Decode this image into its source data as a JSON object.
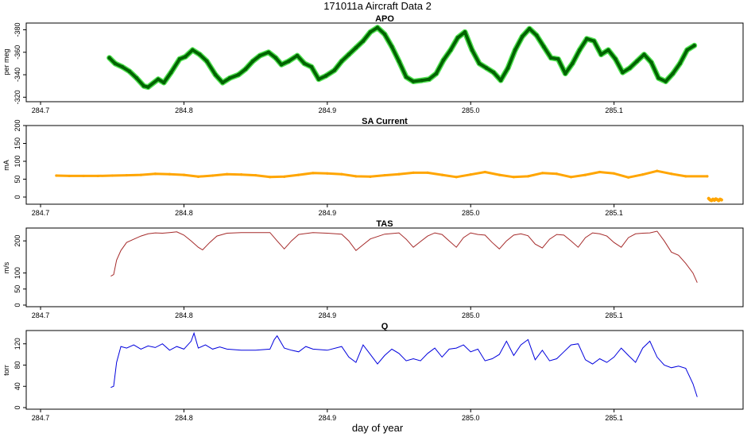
{
  "figure": {
    "title": "171011a   Aircraft Data 2",
    "xlabel": "day of year"
  },
  "chart_data": [
    {
      "type": "scatter",
      "title": "APO",
      "ylabel": "per meg",
      "xlim": [
        284.69,
        285.19
      ],
      "ylim": [
        -386,
        -316
      ],
      "ylim_display": "reversed",
      "xticks": [
        284.7,
        284.8,
        284.9,
        285.0,
        285.1
      ],
      "xtick_labels": [
        "284.7",
        "284.8",
        "284.9",
        "285.0",
        "285.1"
      ],
      "yticks": [
        -320,
        -340,
        -360,
        -380
      ],
      "ytick_labels": [
        "-320",
        "-340",
        "-360",
        "-380"
      ],
      "colors": {
        "primary": "#006400",
        "secondary": "#33dd33"
      },
      "series": [
        {
          "x": [
            284.748,
            284.752,
            284.757,
            284.762,
            284.767,
            284.772,
            284.775,
            284.782,
            284.786,
            284.791,
            284.797,
            284.801,
            284.806,
            284.811,
            284.816,
            284.822,
            284.827,
            284.832,
            284.838,
            284.843,
            284.848,
            284.853,
            284.859,
            284.864,
            284.868,
            284.873,
            284.879,
            284.884,
            284.889,
            284.894,
            284.899,
            284.905,
            284.91,
            284.915,
            284.92,
            284.925,
            284.93,
            284.935,
            284.94,
            284.945,
            284.95,
            284.955,
            284.96,
            284.966,
            284.971,
            284.976,
            284.981,
            284.986,
            284.991,
            284.996,
            285.001,
            285.006,
            285.011,
            285.016,
            285.021,
            285.026,
            285.031,
            285.036,
            285.041,
            285.046,
            285.051,
            285.056,
            285.061,
            285.066,
            285.071,
            285.076,
            285.081,
            285.086,
            285.091,
            285.096,
            285.101,
            285.106,
            285.111,
            285.116,
            285.121,
            285.126,
            285.131,
            285.136,
            285.141,
            285.146,
            285.151,
            285.156
          ],
          "values": [
            -355,
            -350,
            -347,
            -343,
            -337,
            -330,
            -329,
            -336,
            -333,
            -342,
            -354,
            -356,
            -362,
            -358,
            -352,
            -340,
            -333,
            -337,
            -340,
            -345,
            -352,
            -357,
            -360,
            -355,
            -349,
            -352,
            -357,
            -350,
            -347,
            -336,
            -339,
            -344,
            -352,
            -358,
            -364,
            -370,
            -378,
            -382,
            -376,
            -365,
            -352,
            -338,
            -334,
            -335,
            -336,
            -341,
            -353,
            -362,
            -373,
            -378,
            -362,
            -350,
            -346,
            -342,
            -335,
            -346,
            -362,
            -374,
            -381,
            -375,
            -365,
            -355,
            -354,
            -341,
            -350,
            -362,
            -372,
            -370,
            -358,
            -362,
            -354,
            -342,
            -346,
            -352,
            -358,
            -351,
            -337,
            -334,
            -341,
            -350,
            -362,
            -366
          ]
        }
      ]
    },
    {
      "type": "scatter",
      "title": "SA Current",
      "ylabel": "mA",
      "xlim": [
        284.69,
        285.19
      ],
      "ylim": [
        -20,
        200
      ],
      "xticks": [
        284.7,
        284.8,
        284.9,
        285.0,
        285.1
      ],
      "xtick_labels": [
        "284.7",
        "284.8",
        "284.9",
        "285.0",
        "285.1"
      ],
      "yticks": [
        0,
        50,
        100,
        150,
        200
      ],
      "ytick_labels": [
        "0",
        "50",
        "100",
        "150",
        "200"
      ],
      "colors": {
        "primary": "#ffa500"
      },
      "series": [
        {
          "x": [
            284.711,
            284.72,
            284.73,
            284.74,
            284.75,
            284.76,
            284.77,
            284.78,
            284.79,
            284.8,
            284.81,
            284.82,
            284.83,
            284.84,
            284.85,
            284.86,
            284.87,
            284.88,
            284.89,
            284.9,
            284.91,
            284.92,
            284.93,
            284.94,
            284.95,
            284.96,
            284.97,
            284.98,
            284.99,
            285.0,
            285.01,
            285.02,
            285.03,
            285.04,
            285.05,
            285.06,
            285.07,
            285.08,
            285.09,
            285.1,
            285.11,
            285.12,
            285.13,
            285.14,
            285.15,
            285.165
          ],
          "values": [
            60,
            59,
            59,
            59,
            60,
            61,
            62,
            65,
            64,
            62,
            57,
            60,
            64,
            63,
            61,
            56,
            57,
            62,
            67,
            66,
            64,
            58,
            57,
            61,
            64,
            68,
            68,
            62,
            56,
            63,
            70,
            62,
            56,
            58,
            67,
            65,
            56,
            62,
            70,
            66,
            55,
            63,
            73,
            65,
            58,
            58
          ]
        },
        {
          "name": "",
          "x": [
            285.166,
            285.167,
            285.168,
            285.169,
            285.17,
            285.171,
            285.172,
            285.173,
            285.174,
            285.175
          ],
          "values": [
            -4,
            -8,
            -10,
            -6,
            -9,
            -5,
            -7,
            -10,
            -6,
            -8
          ]
        }
      ]
    },
    {
      "type": "line",
      "title": "TAS",
      "ylabel": "m/s",
      "xlim": [
        284.69,
        285.19
      ],
      "ylim": [
        -5,
        240
      ],
      "xticks": [
        284.7,
        284.8,
        284.9,
        285.0,
        285.1
      ],
      "xtick_labels": [
        "284.7",
        "284.8",
        "284.9",
        "285.0",
        "285.1"
      ],
      "yticks": [
        0,
        50,
        100,
        200
      ],
      "ytick_labels": [
        "0",
        "50",
        "100",
        "200"
      ],
      "colors": {
        "primary": "#a52a2a"
      },
      "series": [
        {
          "x": [
            284.749,
            284.751,
            284.753,
            284.756,
            284.76,
            284.765,
            284.77,
            284.775,
            284.78,
            284.785,
            284.79,
            284.795,
            284.8,
            284.805,
            284.81,
            284.813,
            284.818,
            284.823,
            284.83,
            284.84,
            284.85,
            284.86,
            284.865,
            284.87,
            284.875,
            284.88,
            284.89,
            284.9,
            284.91,
            284.915,
            284.92,
            284.925,
            284.93,
            284.94,
            284.95,
            284.955,
            284.96,
            284.965,
            284.97,
            284.975,
            284.98,
            284.985,
            284.99,
            284.995,
            285.0,
            285.005,
            285.01,
            285.015,
            285.02,
            285.025,
            285.03,
            285.035,
            285.04,
            285.045,
            285.05,
            285.055,
            285.06,
            285.065,
            285.07,
            285.075,
            285.08,
            285.085,
            285.09,
            285.095,
            285.1,
            285.105,
            285.11,
            285.115,
            285.12,
            285.125,
            285.13,
            285.135,
            285.14,
            285.145,
            285.15,
            285.155,
            285.158
          ],
          "values": [
            90,
            95,
            140,
            170,
            195,
            205,
            215,
            222,
            225,
            224,
            226,
            228,
            218,
            200,
            180,
            172,
            195,
            215,
            224,
            226,
            226,
            226,
            200,
            175,
            200,
            220,
            226,
            224,
            221,
            200,
            170,
            188,
            206,
            221,
            225,
            205,
            180,
            198,
            215,
            225,
            220,
            200,
            180,
            210,
            225,
            220,
            218,
            195,
            175,
            200,
            218,
            222,
            216,
            190,
            178,
            205,
            220,
            218,
            200,
            180,
            210,
            225,
            222,
            215,
            195,
            180,
            210,
            222,
            224,
            225,
            230,
            200,
            165,
            155,
            130,
            100,
            70
          ]
        }
      ]
    },
    {
      "type": "line",
      "title": "Q",
      "ylabel": "torr",
      "xlim": [
        284.69,
        285.19
      ],
      "ylim": [
        -3,
        145
      ],
      "xticks": [
        284.7,
        284.8,
        284.9,
        285.0,
        285.1
      ],
      "xtick_labels": [
        "284.7",
        "284.8",
        "284.9",
        "285.0",
        "285.1"
      ],
      "yticks": [
        0,
        40,
        80,
        120
      ],
      "ytick_labels": [
        "0",
        "40",
        "80",
        "120"
      ],
      "colors": {
        "primary": "#0000dd"
      },
      "series": [
        {
          "x": [
            284.749,
            284.751,
            284.753,
            284.756,
            284.76,
            284.765,
            284.77,
            284.775,
            284.78,
            284.785,
            284.79,
            284.795,
            284.8,
            284.805,
            284.807,
            284.81,
            284.815,
            284.82,
            284.825,
            284.83,
            284.84,
            284.85,
            284.86,
            284.863,
            284.865,
            284.87,
            284.875,
            284.88,
            284.885,
            284.89,
            284.9,
            284.91,
            284.915,
            284.92,
            284.925,
            284.93,
            284.935,
            284.94,
            284.945,
            284.95,
            284.955,
            284.96,
            284.965,
            284.97,
            284.975,
            284.98,
            284.985,
            284.99,
            284.995,
            285.0,
            285.005,
            285.01,
            285.015,
            285.02,
            285.025,
            285.03,
            285.035,
            285.04,
            285.045,
            285.05,
            285.055,
            285.06,
            285.065,
            285.07,
            285.075,
            285.08,
            285.085,
            285.09,
            285.095,
            285.1,
            285.105,
            285.11,
            285.115,
            285.12,
            285.125,
            285.13,
            285.135,
            285.14,
            285.145,
            285.15,
            285.155,
            285.158
          ],
          "values": [
            38,
            40,
            85,
            115,
            112,
            118,
            110,
            116,
            113,
            120,
            108,
            115,
            110,
            125,
            140,
            112,
            118,
            110,
            114,
            110,
            108,
            108,
            110,
            128,
            135,
            112,
            108,
            105,
            115,
            110,
            108,
            115,
            95,
            85,
            118,
            100,
            82,
            98,
            110,
            102,
            88,
            92,
            88,
            102,
            112,
            95,
            110,
            112,
            118,
            105,
            110,
            88,
            92,
            100,
            125,
            98,
            118,
            128,
            90,
            108,
            88,
            92,
            105,
            118,
            120,
            90,
            82,
            92,
            85,
            95,
            112,
            98,
            85,
            112,
            125,
            95,
            80,
            75,
            78,
            74,
            45,
            20
          ]
        }
      ]
    }
  ]
}
